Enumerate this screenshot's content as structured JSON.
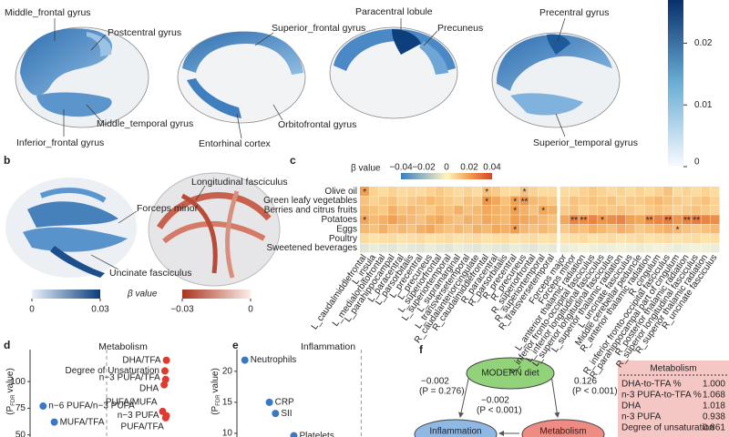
{
  "panel_a": {
    "labels": [
      "Middle_frontal gyrus",
      "Postcentral gyrus",
      "Inferior_frontal gyrus",
      "Middle_temporal gyrus",
      "Superior_frontal gyrus",
      "Entorhinal cortex",
      "Orbitofrontal gyrus",
      "Paracentral lobule",
      "Precuneus",
      "Precentral gyrus",
      "Superior_temporal gyrus"
    ],
    "colorbar": {
      "lim": [
        0,
        0.027
      ],
      "ticks": [
        0,
        0.01,
        0.02
      ]
    }
  },
  "panel_b": {
    "panel_label": "b",
    "labels": [
      "Forceps minor",
      "Longitudinal fasciculus",
      "Uncinate fasciculus"
    ],
    "legend_title": "β value",
    "blue_bar": {
      "lim": [
        0,
        0.03
      ],
      "ticks": [
        0,
        0.03
      ]
    },
    "red_bar": {
      "lim": [
        -0.03,
        0
      ],
      "ticks": [
        {
          "value": -0.03,
          "label": "−0.03"
        },
        0
      ]
    }
  },
  "chart_data": [
    {
      "type": "heatmap",
      "panel_label": "c",
      "legend_title": "β value",
      "colorbar": {
        "lim": [
          -0.04,
          0.04
        ],
        "ticks": [
          {
            "value": -0.04,
            "label": "−0.04"
          },
          {
            "value": -0.02,
            "label": "−0.02"
          },
          0,
          0.02,
          0.04
        ]
      },
      "rows": [
        "Olive oil",
        "Green leafy vegetables",
        "Berries and citrus fruits",
        "Potatoes",
        "Eggs",
        "Poultry",
        "Sweetened beverages"
      ],
      "columns": [
        "L_caudalmiddlefrontal",
        "L_insula",
        "L_medialorbitofrontal",
        "L_parahippocampal",
        "L_paracentral",
        "L_parsorbitalis",
        "L_precentral",
        "L_precuneus",
        "L_superiorfrontal",
        "L_superiortemporal",
        "L_supramarginal",
        "L_transversetemporal",
        "R_caudalanteriorcingulate",
        "R_caudalmiddlefrontal",
        "R_paracentral",
        "R_parsorbitalis",
        "R_precentral",
        "R_precuneus",
        "R_superiorfrontal",
        "R_superiortemporal",
        "R_transversetemporal",
        "Forceps major",
        "Forceps minor",
        "L_anterior thalamic radiation",
        "L_inferior fronto-occipital fasciculus",
        "L_inferior longitudinal fasciculus",
        "L_superior longitudinal fasciculus",
        "L_superior thalamic radiation",
        "L_uncinate fasciculus",
        "Middle cerebellar peduncle",
        "R_anterior thalamic radiation",
        "R_cingulum",
        "R_inferior fronto-occipital fasciculus",
        "R_parahippocampal part of cingulum",
        "R_posterior thalamic radiation",
        "R_superior longitudinal fasciculus",
        "R_superior thalamic radiation",
        "R_uncinate fasciculus"
      ],
      "values": [
        [
          0.02,
          0.008,
          0.006,
          0.008,
          0.006,
          0.007,
          0.006,
          0.008,
          0.01,
          0.008,
          0.006,
          0.008,
          0.006,
          0.012,
          0.01,
          0.006,
          0.006,
          0.012,
          0.008,
          0.006,
          0.006,
          0.006,
          0.006,
          0.008,
          0.01,
          0.008,
          0.006,
          0.008,
          0.006,
          0.008,
          0.006,
          0.008,
          0.012,
          0.006,
          0.008,
          0.006,
          0.008,
          0.006
        ],
        [
          0.012,
          0.008,
          0.01,
          0.012,
          0.008,
          0.01,
          0.012,
          0.014,
          0.012,
          0.01,
          0.008,
          0.012,
          0.01,
          0.022,
          0.018,
          0.012,
          0.02,
          0.022,
          0.014,
          0.012,
          0.01,
          0.008,
          0.012,
          0.01,
          0.012,
          0.01,
          0.012,
          0.008,
          0.01,
          0.01,
          0.012,
          0.014,
          0.012,
          0.01,
          0.008,
          0.01,
          0.012,
          0.008
        ],
        [
          0.014,
          0.012,
          0.01,
          0.016,
          0.012,
          0.014,
          0.012,
          0.01,
          0.014,
          0.012,
          0.016,
          0.012,
          0.014,
          0.018,
          0.016,
          0.014,
          0.02,
          0.016,
          0.012,
          0.018,
          0.016,
          0.01,
          0.012,
          0.008,
          0.01,
          0.012,
          0.01,
          0.012,
          0.01,
          0.008,
          0.01,
          0.012,
          0.01,
          0.008,
          0.01,
          0.012,
          0.01,
          0.008
        ],
        [
          0.018,
          0.014,
          0.016,
          0.02,
          0.016,
          0.014,
          0.012,
          0.016,
          0.018,
          0.014,
          0.012,
          0.016,
          0.014,
          0.018,
          0.016,
          0.014,
          0.02,
          0.018,
          0.016,
          0.014,
          0.012,
          0.018,
          0.026,
          0.024,
          0.026,
          0.022,
          0.024,
          0.026,
          0.02,
          0.018,
          0.024,
          0.026,
          0.028,
          0.022,
          0.026,
          0.028,
          0.026,
          0.024
        ],
        [
          0.014,
          0.012,
          0.016,
          0.012,
          0.014,
          0.012,
          0.016,
          0.018,
          0.014,
          0.012,
          0.014,
          0.012,
          0.016,
          0.014,
          0.018,
          0.016,
          0.02,
          0.014,
          0.012,
          0.014,
          0.012,
          0.01,
          0.014,
          0.012,
          0.016,
          0.014,
          0.012,
          0.016,
          0.014,
          0.01,
          0.012,
          0.014,
          0.016,
          0.014,
          0.012,
          0.01,
          0.012,
          0.014
        ],
        [
          0.006,
          0.004,
          0.005,
          0.006,
          0.004,
          0.005,
          0.006,
          0.004,
          0.005,
          0.006,
          0.004,
          0.005,
          0.006,
          0.004,
          0.005,
          0.006,
          0.004,
          0.005,
          0.006,
          0.004,
          0.005,
          0.004,
          0.005,
          0.006,
          0.004,
          0.005,
          0.006,
          0.004,
          0.005,
          0.006,
          0.004,
          0.005,
          0.006,
          0.004,
          0.005,
          0.006,
          0.004,
          0.005
        ],
        [
          -0.006,
          -0.004,
          -0.005,
          -0.006,
          -0.004,
          -0.005,
          -0.006,
          -0.004,
          -0.005,
          -0.006,
          -0.004,
          -0.005,
          -0.006,
          -0.004,
          -0.005,
          -0.006,
          -0.004,
          -0.005,
          -0.006,
          -0.004,
          -0.005,
          -0.004,
          -0.003,
          -0.002,
          -0.003,
          -0.004,
          -0.003,
          -0.002,
          -0.003,
          -0.004,
          -0.003,
          -0.002,
          -0.003,
          -0.004,
          -0.003,
          -0.002,
          -0.003,
          -0.004
        ]
      ],
      "significance": [
        [
          0,
          0,
          "*"
        ],
        [
          0,
          13,
          "*"
        ],
        [
          0,
          17,
          "*"
        ],
        [
          1,
          13,
          "*"
        ],
        [
          1,
          16,
          "*"
        ],
        [
          1,
          17,
          "**"
        ],
        [
          2,
          16,
          "*"
        ],
        [
          2,
          19,
          "*"
        ],
        [
          3,
          0,
          "*"
        ],
        [
          3,
          22,
          "**"
        ],
        [
          3,
          23,
          "**"
        ],
        [
          3,
          25,
          "*"
        ],
        [
          3,
          30,
          "**"
        ],
        [
          3,
          32,
          "**"
        ],
        [
          3,
          34,
          "**"
        ],
        [
          3,
          35,
          "**"
        ],
        [
          4,
          16,
          "*"
        ],
        [
          4,
          33,
          "*"
        ]
      ]
    },
    {
      "type": "scatter",
      "panel_label": "d",
      "title": "Metabolism",
      "ylabel": [
        "(P",
        "FDR",
        "value)"
      ],
      "xlim": [
        -0.1,
        0.15
      ],
      "ylim": [
        48,
        130
      ],
      "yticks": [
        50,
        75,
        100
      ],
      "reference_x": 0,
      "labels": [
        "n−6 PUFA/n−3 PUFA",
        "MUFA/TFA",
        "DHA/TFA",
        "Degree of Unsaturation",
        "n−3 PUFA/TFA",
        "DHA",
        "PUFA/MUFA",
        "n−3 PUFA",
        "PUFA/TFA"
      ],
      "x": [
        -0.085,
        -0.07,
        0.08,
        0.078,
        0.079,
        0.077,
        0.075,
        0.08,
        0.079
      ],
      "y": [
        77,
        62,
        120,
        110,
        102,
        97,
        72,
        68,
        66
      ],
      "colors": [
        "#3a78c2",
        "#3a78c2",
        "#e03a2e",
        "#e03a2e",
        "#e03a2e",
        "#e03a2e",
        "#e03a2e",
        "#e03a2e",
        "#e03a2e"
      ]
    },
    {
      "type": "scatter",
      "panel_label": "e",
      "title": "Inflammation",
      "ylabel": [
        "(P",
        "FDR",
        "value)"
      ],
      "xlim": [
        -0.2,
        0.05
      ],
      "ylim": [
        9.4,
        23.5
      ],
      "yticks": [
        10,
        15,
        20
      ],
      "reference_x": 0,
      "labels": [
        "Neutrophils",
        "CRP",
        "SII",
        "Platelets"
      ],
      "x": [
        -0.19,
        -0.15,
        -0.14,
        -0.11
      ],
      "y": [
        21.8,
        15,
        13.2,
        9.6
      ],
      "colors": [
        "#3a78c2",
        "#3a78c2",
        "#3a78c2",
        "#3a78c2"
      ]
    }
  ],
  "panel_f": {
    "panel_label": "f",
    "nodes": [
      "MODERN diet",
      "Inflammation",
      "Metabolism"
    ],
    "paths": [
      {
        "coef": "−0.002",
        "p": "(P = 0.276)"
      },
      {
        "coef": "−0.002",
        "p": "(P < 0.001)"
      },
      {
        "coef": "0.126",
        "p": "(P < 0.001)"
      }
    ],
    "table": {
      "title": "Metabolism",
      "rows": [
        [
          "DHA-to-TFA %",
          "1.000"
        ],
        [
          "n-3 PUFA-to-TFA %",
          "1.068"
        ],
        [
          "DHA",
          "1.018"
        ],
        [
          "n-3 PUFA",
          "0.938"
        ],
        [
          "Degree of unsaturation",
          "0.861"
        ]
      ]
    }
  }
}
